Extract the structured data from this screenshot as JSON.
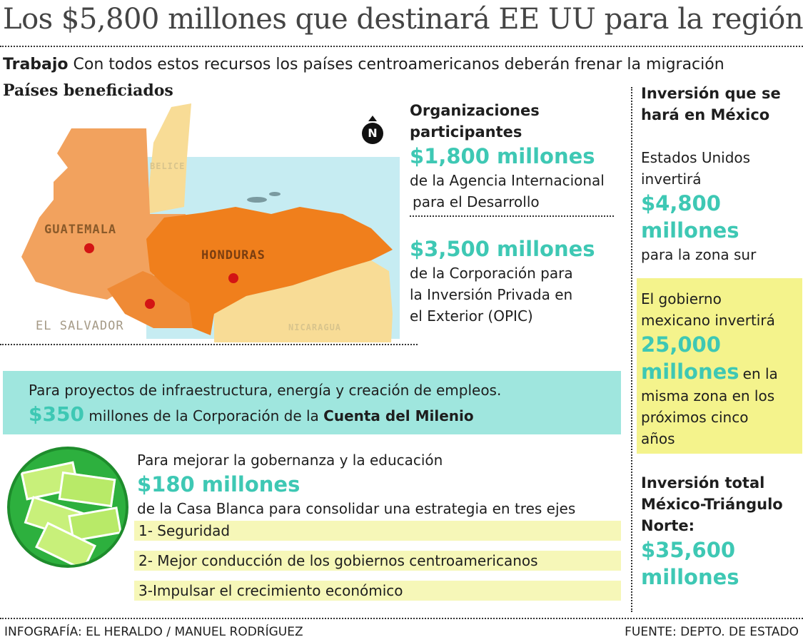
{
  "title": "Los $5,800 millones que destinará EE UU para la región",
  "subtitle": {
    "lead": "Trabajo",
    "text": "Con todos estos recursos los países centroamericanos deberán frenar la migración"
  },
  "map": {
    "heading": "Países beneficiados",
    "countries": [
      "GUATEMALA",
      "HONDURAS",
      "EL SALVADOR",
      "BELICE",
      "NICARAGUA"
    ],
    "north": "N",
    "colors": {
      "guatemala": "#f2a25e",
      "honduras": "#f07f1c",
      "salvador": "#ef8a35",
      "belice": "#f8dc96",
      "nicaragua": "#f8dc96",
      "sea": "#c6ecf2",
      "marker": "#d31414"
    }
  },
  "orgs": {
    "heading_1": "Organizaciones",
    "heading_2": "participantes",
    "item1": {
      "amount": "$1,800 millones",
      "line1": "de la Agencia Internacional",
      "line2": "para el Desarrollo"
    },
    "item2": {
      "amount": "$3,500 millones",
      "line1": "de la Corporación para",
      "line2": "la Inversión Privada en",
      "line3": "el Exterior (OPIC)"
    }
  },
  "milenio": {
    "line1": "Para proyectos de infraestructura, energía y creación de empleos.",
    "amount": "$350",
    "mid": "millones de la Corporación de la",
    "bold": "Cuenta del Milenio"
  },
  "gobernanza": {
    "line1": "Para mejorar la gobernanza y la educación",
    "amount": "$180 millones",
    "line2": "de la Casa Blanca para consolidar una estrategia en tres ejes",
    "axes": [
      "1- Seguridad",
      "2- Mejor conducción de los gobiernos centroamericanos",
      "3-Impulsar el crecimiento económico"
    ]
  },
  "mexico": {
    "heading_1": "Inversión que se",
    "heading_2": "hará en México",
    "us_1": "Estados Unidos",
    "us_2": "invertirá",
    "us_amount_1": "$4,800",
    "us_amount_2": "millones",
    "us_3": "para la zona sur",
    "gov_1": "El gobierno",
    "gov_2": "mexicano invertirá",
    "gov_amount_1": "25,000",
    "gov_amount_2": "millones",
    "gov_3": "en la",
    "gov_4": "misma zona en los",
    "gov_5": "próximos cinco",
    "gov_6": "años",
    "total_1": "Inversión total",
    "total_2": "México-Triángulo",
    "total_3": "Norte:",
    "total_amount_1": "$35,600",
    "total_amount_2": "millones"
  },
  "footer": {
    "credit": "INFOGRAFÍA: EL HERALDO / MANUEL RODRÍGUEZ",
    "source": "FUENTE: DEPTO. DE ESTADO"
  }
}
